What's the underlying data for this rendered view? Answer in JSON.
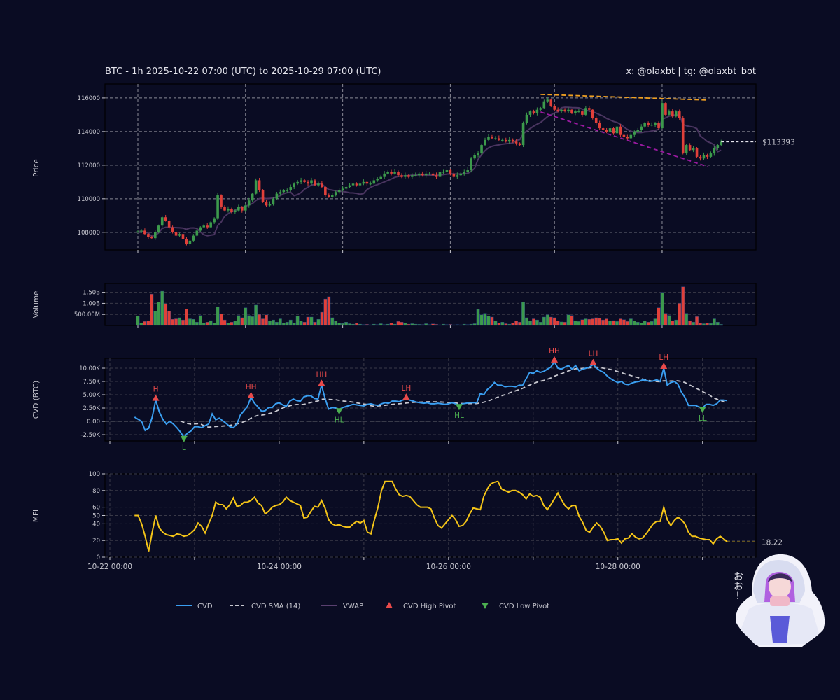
{
  "header": {
    "title": "BTC - 1h 2025-10-22 07:00 (UTC) to 2025-10-29 07:00 (UTC)",
    "credit": "x: @olaxbt | tg: @olaxbt_bot"
  },
  "colors": {
    "background": "#0a0c23",
    "up": "#3c9a4c",
    "down": "#e0403a",
    "cvd": "#3a9ef0",
    "cvd_sma": "#c8c8d0",
    "vwap": "#4a3560",
    "mfi": "#f5c518",
    "pivot_high": "#e84a4a",
    "pivot_low": "#4caf50",
    "resistance": "#f0a020",
    "support": "#9a1aa0"
  },
  "chart_data": [
    {
      "panel": "price",
      "type": "candlestick",
      "ylabel": "Price",
      "yticks": [
        108000,
        110000,
        112000,
        114000,
        116000
      ],
      "ylim": [
        106950,
        116830
      ],
      "grid": true,
      "last_price_label": "$113393",
      "last_price": 113393,
      "close": [
        108050,
        108100,
        107900,
        107700,
        107650,
        108000,
        108400,
        108900,
        108700,
        108300,
        108000,
        107800,
        107900,
        107600,
        107300,
        107500,
        107800,
        108100,
        108300,
        108400,
        108300,
        108600,
        108800,
        110200,
        109500,
        109300,
        109400,
        109200,
        109300,
        109500,
        109300,
        109600,
        109900,
        110300,
        111100,
        110500,
        109800,
        109600,
        109700,
        110000,
        110300,
        110400,
        110500,
        110500,
        110700,
        110900,
        111000,
        111100,
        111000,
        110900,
        111100,
        110800,
        110900,
        110700,
        110200,
        110100,
        110200,
        110400,
        110500,
        110600,
        110700,
        110800,
        110900,
        110800,
        110900,
        111000,
        110900,
        110900,
        111100,
        111200,
        111300,
        111500,
        111600,
        111500,
        111600,
        111400,
        111300,
        111400,
        111300,
        111400,
        111400,
        111500,
        111400,
        111500,
        111500,
        111400,
        111300,
        111600,
        111600,
        111700,
        111500,
        111300,
        111400,
        111500,
        111600,
        111700,
        112400,
        112600,
        112700,
        113200,
        113500,
        113700,
        113600,
        113600,
        113500,
        113500,
        113400,
        113500,
        113400,
        113300,
        113200,
        114500,
        115000,
        115200,
        115100,
        115300,
        115400,
        115800,
        115900,
        115500,
        115300,
        115200,
        115300,
        115200,
        115300,
        115100,
        115200,
        115200,
        115000,
        115400,
        115300,
        114800,
        114500,
        114200,
        114100,
        114000,
        114200,
        113900,
        114300,
        113800,
        113700,
        113600,
        113800,
        114000,
        114100,
        114300,
        114500,
        114400,
        114400,
        114500,
        114200,
        115700,
        115000,
        115200,
        114900,
        115200,
        114800,
        112700,
        113200,
        112900,
        113000,
        112500,
        112400,
        112600,
        112500,
        112700,
        113000,
        113200,
        113393
      ],
      "trendlines": [
        {
          "kind": "resistance",
          "from": {
            "bar": 116,
            "price": 116210
          },
          "to": {
            "bar": 164,
            "price": 115875
          }
        },
        {
          "kind": "support",
          "from": {
            "bar": 116,
            "price": 115170
          },
          "to": {
            "bar": 164,
            "price": 111920
          }
        }
      ]
    },
    {
      "panel": "volume",
      "type": "bar",
      "ylabel": "Volume",
      "unit": "M",
      "yticks": [
        500,
        1000,
        1500
      ],
      "ytick_labels": [
        "500.00M",
        "1.00B",
        "1.50B"
      ],
      "ylim": [
        0,
        1900
      ],
      "values": [
        420,
        120,
        180,
        200,
        1420,
        650,
        1050,
        1550,
        980,
        650,
        280,
        300,
        350,
        250,
        750,
        300,
        280,
        150,
        450,
        100,
        150,
        220,
        100,
        850,
        520,
        250,
        120,
        150,
        200,
        450,
        350,
        800,
        450,
        400,
        920,
        500,
        300,
        480,
        200,
        250,
        150,
        300,
        100,
        150,
        250,
        120,
        420,
        200,
        150,
        380,
        380,
        150,
        280,
        600,
        1200,
        1300,
        350,
        200,
        120,
        90,
        150,
        80,
        60,
        100,
        60,
        40,
        50,
        30,
        60,
        40,
        80,
        40,
        60,
        120,
        60,
        180,
        150,
        100,
        60,
        80,
        60,
        50,
        40,
        80,
        40,
        70,
        50,
        30,
        60,
        40,
        50,
        30,
        40,
        30,
        60,
        40,
        60,
        80,
        730,
        480,
        550,
        420,
        380,
        200,
        120,
        150,
        80,
        60,
        120,
        200,
        150,
        1050,
        350,
        200,
        300,
        250,
        150,
        380,
        480,
        380,
        350,
        200,
        160,
        150,
        480,
        450,
        200,
        180,
        260,
        300,
        280,
        300,
        350,
        320,
        250,
        300,
        200,
        220,
        180,
        300,
        260,
        180,
        300,
        200,
        150,
        120,
        200,
        150,
        180,
        300,
        800,
        1500,
        550,
        450,
        200,
        250,
        1000,
        1750,
        550,
        200,
        150,
        400,
        100,
        80,
        120,
        90,
        300,
        150,
        50
      ]
    },
    {
      "panel": "cvd",
      "type": "line",
      "ylabel": "CVD (BTC)",
      "unit": "K",
      "yticks": [
        -2.5,
        0,
        2.5,
        5,
        7.5,
        10
      ],
      "ytick_labels": [
        "-2.50K",
        "0.00",
        "2.50K",
        "5.00K",
        "7.50K",
        "10.00K"
      ],
      "ylim": [
        -3.68,
        11.84
      ],
      "sma_period": 14,
      "values": [
        0.8,
        0.4,
        0.0,
        -1.7,
        -1.3,
        0.8,
        4.0,
        1.8,
        0.4,
        -0.5,
        0.0,
        -0.5,
        -1.2,
        -2.0,
        -3.0,
        -2.2,
        -1.8,
        -1.0,
        -1.0,
        -1.2,
        -0.8,
        -0.5,
        1.4,
        0.3,
        0.6,
        0.1,
        -0.4,
        -1.0,
        -1.2,
        -0.5,
        1.2,
        2.0,
        2.8,
        4.5,
        3.4,
        2.7,
        1.9,
        2.0,
        2.6,
        2.6,
        3.3,
        3.5,
        3.1,
        2.8,
        3.8,
        4.2,
        3.9,
        3.8,
        4.6,
        4.8,
        4.8,
        4.3,
        4.2,
        6.8,
        4.3,
        2.3,
        2.6,
        2.5,
        2.2,
        2.6,
        2.8,
        3.0,
        3.2,
        3.1,
        3.0,
        2.9,
        3.2,
        3.3,
        3.1,
        3.0,
        3.3,
        3.5,
        3.4,
        3.8,
        3.8,
        3.7,
        4.0,
        4.2,
        4.0,
        3.8,
        3.6,
        3.5,
        3.4,
        3.5,
        3.3,
        3.3,
        3.4,
        3.3,
        3.2,
        3.3,
        3.5,
        3.3,
        3.0,
        3.3,
        3.4,
        3.5,
        3.5,
        3.5,
        5.2,
        5.0,
        6.0,
        6.5,
        7.3,
        6.8,
        6.8,
        6.5,
        6.6,
        6.6,
        6.5,
        6.8,
        6.8,
        8.0,
        9.2,
        9.0,
        9.5,
        9.2,
        9.4,
        9.8,
        10.2,
        11.2,
        10.0,
        9.8,
        10.2,
        10.5,
        9.8,
        10.5,
        9.5,
        9.8,
        10.0,
        10.2,
        10.7,
        10.0,
        9.5,
        9.2,
        8.5,
        8.0,
        7.6,
        7.3,
        7.5,
        7.0,
        6.9,
        7.2,
        7.4,
        7.5,
        7.8,
        7.7,
        7.5,
        7.6,
        7.8,
        7.5,
        10.0,
        6.8,
        7.3,
        7.5,
        7.0,
        5.5,
        4.5,
        3.0,
        3.0,
        3.0,
        2.7,
        2.5,
        3.2,
        3.2,
        3.0,
        3.3,
        4.0,
        4.0,
        3.9
      ],
      "pivots": [
        {
          "bar": 6,
          "type": "high",
          "label": "H"
        },
        {
          "bar": 14,
          "type": "low",
          "label": "L"
        },
        {
          "bar": 33,
          "type": "high",
          "label": "HH"
        },
        {
          "bar": 53,
          "type": "high",
          "label": "HH"
        },
        {
          "bar": 58,
          "type": "low",
          "label": "HL"
        },
        {
          "bar": 77,
          "type": "high",
          "label": "LH"
        },
        {
          "bar": 92,
          "type": "low",
          "label": "HL"
        },
        {
          "bar": 119,
          "type": "high",
          "label": "HH"
        },
        {
          "bar": 130,
          "type": "high",
          "label": "LH"
        },
        {
          "bar": 150,
          "type": "high",
          "label": "LH"
        },
        {
          "bar": 161,
          "type": "low",
          "label": "LL"
        }
      ]
    },
    {
      "panel": "mfi",
      "type": "line",
      "ylabel": "MFI",
      "yticks": [
        0,
        20,
        40,
        50,
        60,
        80,
        100
      ],
      "ylim": [
        0,
        100
      ],
      "last_value_label": "18.22",
      "x_start_hour": "2025-10-22 07:00",
      "xtick_labels": [
        "10-22 00:00",
        "10-24 00:00",
        "10-26 00:00",
        "10-28 00:00"
      ],
      "values": [
        50,
        50,
        40,
        25,
        7,
        30,
        50,
        35,
        30,
        27,
        26,
        25,
        28,
        27,
        25,
        26,
        29,
        33,
        41,
        37,
        29,
        40,
        50,
        66,
        63,
        63,
        58,
        63,
        71,
        61,
        62,
        66,
        66,
        68,
        72,
        65,
        62,
        52,
        55,
        60,
        62,
        63,
        66,
        72,
        68,
        66,
        64,
        62,
        47,
        48,
        55,
        61,
        60,
        68,
        59,
        45,
        40,
        38,
        39,
        37,
        36,
        36,
        40,
        43,
        41,
        44,
        30,
        28,
        45,
        60,
        80,
        91,
        91,
        91,
        82,
        75,
        73,
        74,
        73,
        68,
        63,
        60,
        60,
        60,
        58,
        47,
        38,
        35,
        40,
        45,
        50,
        45,
        37,
        38,
        43,
        52,
        59,
        58,
        57,
        73,
        82,
        88,
        90,
        91,
        82,
        80,
        78,
        80,
        80,
        78,
        75,
        70,
        76,
        73,
        74,
        72,
        62,
        57,
        63,
        70,
        77,
        69,
        62,
        58,
        62,
        62,
        49,
        42,
        32,
        30,
        36,
        41,
        37,
        30,
        20,
        21,
        21,
        22,
        17,
        22,
        23,
        28,
        24,
        22,
        23,
        28,
        34,
        40,
        43,
        43,
        60,
        45,
        38,
        44,
        48,
        45,
        40,
        30,
        25,
        25,
        23,
        22,
        21,
        21,
        16,
        22,
        25,
        22,
        18.22
      ]
    }
  ],
  "legend": {
    "position": "bottom",
    "items": [
      {
        "label": "CVD",
        "icon": "solid-line"
      },
      {
        "label": "CVD SMA (14)",
        "icon": "dashed-line"
      },
      {
        "label": "VWAP",
        "icon": "solid-line"
      },
      {
        "label": "CVD High Pivot",
        "icon": "triangle-up"
      },
      {
        "label": "CVD Low Pivot",
        "icon": "triangle-down"
      }
    ]
  },
  "sticker": {
    "text": "おお!",
    "icon": "hooded-girl-mascot"
  }
}
